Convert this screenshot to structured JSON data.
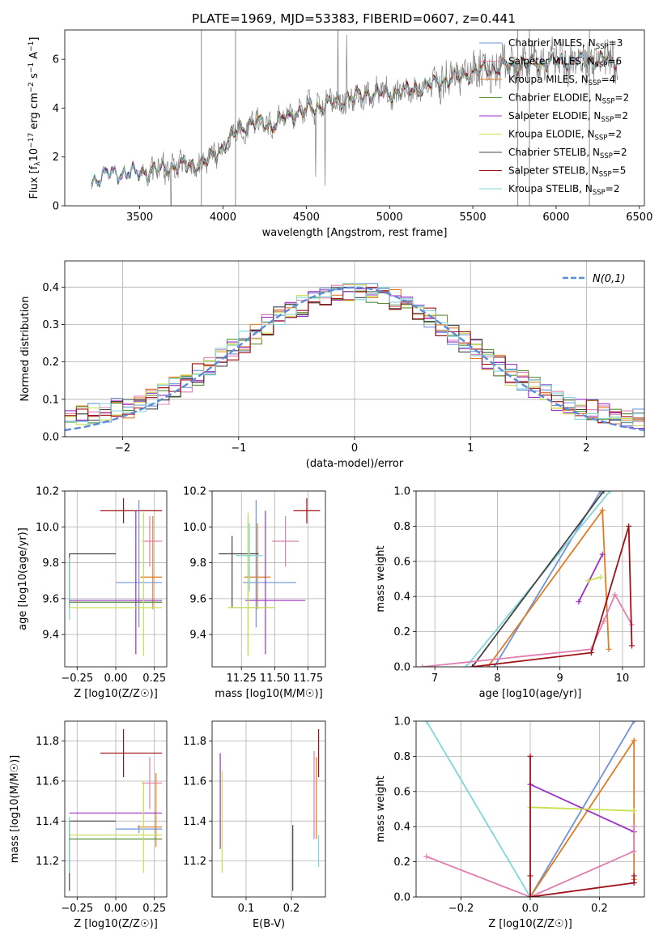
{
  "figure_title": "PLATE=1969, MJD=53383, FIBERID=0607, z=0.441",
  "colors": {
    "Chabrier MILES": "#6f93db",
    "Salpeter MILES": "#e07fb0",
    "Kroupa MILES": "#e07b22",
    "Chabrier ELODIE": "#5a8f3a",
    "Salpeter ELODIE": "#9b30c8",
    "Kroupa ELODIE": "#c8df50",
    "Chabrier STELIB": "#444444",
    "Salpeter STELIB": "#a01018",
    "Kroupa STELIB": "#80d6da",
    "data": "#808080",
    "normal": "#5b8bd9"
  },
  "chart_data": [
    {
      "id": "spectrum",
      "type": "line",
      "xlabel": "wavelength [Angstrom, rest frame]",
      "ylabel": "Flux [f_λ 10^-17 erg cm^-2 s^-1 A^-1]",
      "xlim": [
        3050,
        6530
      ],
      "ylim": [
        0,
        7.2
      ],
      "xticks": [
        3500,
        4000,
        4500,
        5000,
        5500,
        6000,
        6500
      ],
      "yticks": [
        0,
        2,
        4,
        6
      ],
      "legend_position": "top-right",
      "legend": [
        {
          "name": "Chabrier MILES",
          "nssp": "3"
        },
        {
          "name": "Salpeter MILES",
          "nssp": "6"
        },
        {
          "name": "Kroupa MILES",
          "nssp": "4"
        },
        {
          "name": "Chabrier ELODIE",
          "nssp": "2"
        },
        {
          "name": "Salpeter ELODIE",
          "nssp": "2"
        },
        {
          "name": "Kroupa ELODIE",
          "nssp": "2"
        },
        {
          "name": "Chabrier STELIB",
          "nssp": "2"
        },
        {
          "name": "Salpeter STELIB",
          "nssp": "5"
        },
        {
          "name": "Kroupa STELIB",
          "nssp": "2"
        }
      ],
      "data_wavelength_range": [
        3210,
        6370
      ],
      "continuum": [
        [
          3210,
          1.0
        ],
        [
          3300,
          1.3
        ],
        [
          3500,
          1.35
        ],
        [
          3600,
          1.45
        ],
        [
          3700,
          1.6
        ],
        [
          3800,
          1.65
        ],
        [
          3900,
          1.8
        ],
        [
          4000,
          2.4
        ],
        [
          4100,
          3.2
        ],
        [
          4200,
          3.4
        ],
        [
          4300,
          3.3
        ],
        [
          4400,
          3.7
        ],
        [
          4500,
          3.9
        ],
        [
          4600,
          4.1
        ],
        [
          4700,
          4.3
        ],
        [
          4800,
          4.5
        ],
        [
          4900,
          4.6
        ],
        [
          5000,
          4.6
        ],
        [
          5100,
          4.7
        ],
        [
          5200,
          4.85
        ],
        [
          5300,
          5.1
        ],
        [
          5400,
          5.2
        ],
        [
          5500,
          5.5
        ],
        [
          5600,
          5.6
        ],
        [
          5700,
          5.7
        ],
        [
          5800,
          5.8
        ],
        [
          5900,
          5.85
        ],
        [
          6000,
          5.9
        ],
        [
          6100,
          5.95
        ],
        [
          6200,
          5.95
        ],
        [
          6370,
          6.0
        ]
      ]
    },
    {
      "id": "residual-histogram",
      "type": "histogram",
      "xlabel": "(data-model)/error",
      "ylabel": "Normed distribution",
      "xlim": [
        -2.5,
        2.5
      ],
      "ylim": [
        0,
        0.47
      ],
      "xticks": [
        -2,
        -1,
        0,
        1,
        2
      ],
      "yticks": [
        0.0,
        0.1,
        0.2,
        0.3,
        0.4
      ],
      "bin_width": 0.1,
      "legend_position": "top-right",
      "legend_label": "N(0,1)",
      "normal_mu": 0,
      "normal_sigma": 1
    },
    {
      "id": "age-vs-z",
      "type": "errorbar",
      "xlabel": "Z [log10(Z/Z☉)]",
      "ylabel": "age [log10(age/yr)]",
      "xlim": [
        -0.33,
        0.33
      ],
      "ylim": [
        9.22,
        10.2
      ],
      "xticks": [
        -0.25,
        0.0,
        0.25
      ],
      "yticks": [
        9.4,
        9.6,
        9.8,
        10.0,
        10.2
      ],
      "points": [
        {
          "model": "Salpeter STELIB",
          "x": 0.05,
          "xerr": [
            0.15,
            0.25
          ],
          "y": 10.09,
          "yerr": [
            0.07,
            0.07
          ]
        },
        {
          "model": "Salpeter MILES",
          "x": 0.22,
          "xerr": [
            0.05,
            0.08
          ],
          "y": 9.92,
          "yerr": [
            0.14,
            0.14
          ]
        },
        {
          "model": "Kroupa MILES",
          "x": 0.24,
          "xerr": [
            0.08,
            0.06
          ],
          "y": 9.72,
          "yerr": [
            0.18,
            0.34
          ]
        },
        {
          "model": "Chabrier MILES",
          "x": 0.15,
          "xerr": [
            0.15,
            0.15
          ],
          "y": 9.69,
          "yerr": [
            0.25,
            0.46
          ]
        },
        {
          "model": "Chabrier STELIB",
          "x": -0.3,
          "xerr": [
            0.0,
            0.3
          ],
          "y": 9.85,
          "yerr": [
            0.3,
            0.0
          ]
        },
        {
          "model": "Kroupa STELIB",
          "x": -0.3,
          "xerr": [
            0.0,
            0.0
          ],
          "y": 9.7,
          "yerr": [
            0.22,
            0.13
          ]
        },
        {
          "model": "Chabrier ELODIE",
          "x": 0.14,
          "xerr": [
            0.44,
            0.16
          ],
          "y": 9.58,
          "yerr": [
            0.0,
            0.0
          ]
        },
        {
          "model": "Salpeter ELODIE",
          "x": 0.13,
          "xerr": [
            0.43,
            0.17
          ],
          "y": 9.59,
          "yerr": [
            0.3,
            0.5
          ]
        },
        {
          "model": "Kroupa ELODIE",
          "x": 0.18,
          "xerr": [
            0.48,
            0.12
          ],
          "y": 9.55,
          "yerr": [
            0.27,
            0.53
          ]
        }
      ]
    },
    {
      "id": "age-vs-mass",
      "type": "errorbar",
      "xlabel": "mass [log10(M/M☉)]",
      "ylabel": "",
      "xlim": [
        11.03,
        11.88
      ],
      "ylim": [
        9.22,
        10.2
      ],
      "xticks": [
        11.25,
        11.5,
        11.75
      ],
      "yticks": [
        9.4,
        9.6,
        9.8,
        10.0,
        10.2
      ],
      "points": [
        {
          "model": "Salpeter STELIB",
          "x": 11.74,
          "xerr": [
            0.1,
            0.1
          ],
          "y": 10.09,
          "yerr": [
            0.07,
            0.07
          ]
        },
        {
          "model": "Salpeter MILES",
          "x": 11.58,
          "xerr": [
            0.1,
            0.1
          ],
          "y": 9.92,
          "yerr": [
            0.14,
            0.14
          ]
        },
        {
          "model": "Kroupa MILES",
          "x": 11.37,
          "xerr": [
            0.1,
            0.1
          ],
          "y": 9.72,
          "yerr": [
            0.18,
            0.3
          ]
        },
        {
          "model": "Chabrier MILES",
          "x": 11.36,
          "xerr": [
            0.1,
            0.3
          ],
          "y": 9.69,
          "yerr": [
            0.25,
            0.46
          ]
        },
        {
          "model": "Chabrier STELIB",
          "x": 11.18,
          "xerr": [
            0.1,
            0.2
          ],
          "y": 9.85,
          "yerr": [
            0.3,
            0.1
          ]
        },
        {
          "model": "Kroupa STELIB",
          "x": 11.31,
          "xerr": [
            0.1,
            0.1
          ],
          "y": 9.84,
          "yerr": [
            0.2,
            0.18
          ]
        },
        {
          "model": "Chabrier ELODIE",
          "x": 11.3,
          "xerr": [
            0.15,
            0.2
          ],
          "y": 9.55,
          "yerr": [
            0.26,
            0.5
          ]
        },
        {
          "model": "Salpeter ELODIE",
          "x": 11.43,
          "xerr": [
            0.15,
            0.3
          ],
          "y": 9.59,
          "yerr": [
            0.3,
            0.5
          ]
        },
        {
          "model": "Kroupa ELODIE",
          "x": 11.3,
          "xerr": [
            0.15,
            0.2
          ],
          "y": 9.55,
          "yerr": [
            0.27,
            0.53
          ]
        }
      ]
    },
    {
      "id": "weight-vs-age",
      "type": "line",
      "xlabel": "age [log10(age/yr)]",
      "ylabel": "mass weight",
      "xlim": [
        6.7,
        10.35
      ],
      "ylim": [
        0,
        1.0
      ],
      "xticks": [
        7,
        8,
        9,
        10
      ],
      "yticks": [
        0.0,
        0.2,
        0.4,
        0.6,
        0.8,
        1.0
      ],
      "series": [
        {
          "model": "Chabrier MILES",
          "x": [
            7.95,
            9.65
          ],
          "y": [
            0.0,
            1.0
          ]
        },
        {
          "model": "Kroupa STELIB",
          "x": [
            7.5,
            9.8
          ],
          "y": [
            0.0,
            1.0
          ]
        },
        {
          "model": "Chabrier STELIB",
          "x": [
            7.6,
            9.7
          ],
          "y": [
            0.0,
            1.0
          ]
        },
        {
          "model": "Kroupa MILES",
          "x": [
            7.85,
            9.68,
            9.78
          ],
          "y": [
            0.0,
            0.89,
            0.1
          ]
        },
        {
          "model": "Salpeter ELODIE",
          "x": [
            9.3,
            9.68
          ],
          "y": [
            0.37,
            0.64
          ]
        },
        {
          "model": "Kroupa ELODIE",
          "x": [
            9.45,
            9.65
          ],
          "y": [
            0.49,
            0.51
          ]
        },
        {
          "model": "Salpeter MILES",
          "x": [
            6.8,
            9.5,
            9.7,
            9.88,
            10.15
          ],
          "y": [
            0.0,
            0.1,
            0.26,
            0.41,
            0.24
          ]
        },
        {
          "model": "Salpeter STELIB",
          "x": [
            7.6,
            9.5,
            10.1,
            10.15
          ],
          "y": [
            0.0,
            0.08,
            0.8,
            0.12
          ]
        }
      ]
    },
    {
      "id": "mass-vs-z",
      "type": "errorbar",
      "xlabel": "Z [log10(Z/Z☉)]",
      "ylabel": "mass [log10(M/M☉)]",
      "xlim": [
        -0.33,
        0.33
      ],
      "ylim": [
        11.02,
        11.9
      ],
      "xticks": [
        -0.25,
        0.0,
        0.25
      ],
      "yticks": [
        11.2,
        11.4,
        11.6,
        11.8
      ],
      "points": [
        {
          "model": "Salpeter STELIB",
          "x": 0.05,
          "xerr": [
            0.15,
            0.25
          ],
          "y": 11.74,
          "yerr": [
            0.12,
            0.12
          ]
        },
        {
          "model": "Salpeter MILES",
          "x": 0.22,
          "xerr": [
            0.05,
            0.08
          ],
          "y": 11.59,
          "yerr": [
            0.13,
            0.13
          ]
        },
        {
          "model": "Kroupa MILES",
          "x": 0.26,
          "xerr": [
            0.12,
            0.04
          ],
          "y": 11.37,
          "yerr": [
            0.1,
            0.27
          ]
        },
        {
          "model": "Chabrier MILES",
          "x": 0.15,
          "xerr": [
            0.15,
            0.15
          ],
          "y": 11.36,
          "yerr": [
            0.02,
            0.02
          ]
        },
        {
          "model": "Chabrier STELIB",
          "x": -0.3,
          "xerr": [
            0.0,
            0.3
          ],
          "y": 11.4,
          "yerr": [
            0.35,
            0.0
          ]
        },
        {
          "model": "Kroupa STELIB",
          "x": -0.3,
          "xerr": [
            0.0,
            0.0
          ],
          "y": 11.32,
          "yerr": [
            0.18,
            0.1
          ]
        },
        {
          "model": "Chabrier ELODIE",
          "x": 0.14,
          "xerr": [
            0.44,
            0.16
          ],
          "y": 11.31,
          "yerr": [
            0.0,
            0.0
          ]
        },
        {
          "model": "Salpeter ELODIE",
          "x": 0.13,
          "xerr": [
            0.43,
            0.17
          ],
          "y": 11.44,
          "yerr": [
            0.0,
            0.0
          ]
        },
        {
          "model": "Kroupa ELODIE",
          "x": 0.18,
          "xerr": [
            0.48,
            0.12
          ],
          "y": 11.33,
          "yerr": [
            0.19,
            0.27
          ]
        }
      ]
    },
    {
      "id": "mass-vs-ebv",
      "type": "errorbar",
      "xlabel": "E(B-V)",
      "ylabel": "",
      "xlim": [
        0.025,
        0.275
      ],
      "ylim": [
        11.02,
        11.9
      ],
      "xticks": [
        0.1,
        0.2
      ],
      "yticks": [
        11.2,
        11.4,
        11.6,
        11.8
      ],
      "points": [
        {
          "model": "Salpeter STELIB",
          "x": 0.26,
          "xerr": [
            0,
            0
          ],
          "y": 11.74,
          "yerr": [
            0.12,
            0.12
          ]
        },
        {
          "model": "Salpeter MILES",
          "x": 0.25,
          "xerr": [
            0,
            0
          ],
          "y": 11.59,
          "yerr": [
            0.28,
            0.16
          ]
        },
        {
          "model": "Kroupa MILES",
          "x": 0.255,
          "xerr": [
            0,
            0
          ],
          "y": 11.5,
          "yerr": [
            0.19,
            0.22
          ]
        },
        {
          "model": "Kroupa STELIB",
          "x": 0.26,
          "xerr": [
            0,
            0
          ],
          "y": 11.25,
          "yerr": [
            0.08,
            0.08
          ]
        },
        {
          "model": "Chabrier STELIB",
          "x": 0.203,
          "xerr": [
            0,
            0
          ],
          "y": 11.2,
          "yerr": [
            0.15,
            0.18
          ]
        },
        {
          "model": "Salpeter ELODIE",
          "x": 0.043,
          "xerr": [
            0,
            0
          ],
          "y": 11.49,
          "yerr": [
            0.23,
            0.25
          ]
        },
        {
          "model": "Kroupa ELODIE",
          "x": 0.047,
          "xerr": [
            0,
            0
          ],
          "y": 11.39,
          "yerr": [
            0.25,
            0.26
          ]
        }
      ]
    },
    {
      "id": "weight-vs-z",
      "type": "line",
      "xlabel": "Z [log10(Z/Z☉)]",
      "ylabel": "mass weight",
      "xlim": [
        -0.33,
        0.33
      ],
      "ylim": [
        0,
        1.0
      ],
      "xticks": [
        -0.2,
        0.0,
        0.2
      ],
      "yticks": [
        0.0,
        0.2,
        0.4,
        0.6,
        0.8,
        1.0
      ],
      "series": [
        {
          "model": "Kroupa STELIB",
          "x": [
            -0.3,
            0.0
          ],
          "y": [
            1.0,
            0.0
          ]
        },
        {
          "model": "Chabrier MILES",
          "x": [
            0.0,
            0.3
          ],
          "y": [
            0.0,
            1.0
          ]
        },
        {
          "model": "Kroupa MILES",
          "x": [
            0.0,
            0.3,
            0.3
          ],
          "y": [
            0.0,
            0.89,
            0.1
          ]
        },
        {
          "model": "Salpeter ELODIE",
          "x": [
            0.0,
            0.3
          ],
          "y": [
            0.64,
            0.37
          ]
        },
        {
          "model": "Kroupa ELODIE",
          "x": [
            0.0,
            0.3
          ],
          "y": [
            0.51,
            0.49
          ]
        },
        {
          "model": "Salpeter MILES",
          "x": [
            -0.3,
            0.0,
            0.3,
            0.3
          ],
          "y": [
            0.23,
            0.0,
            0.26,
            0.4
          ]
        },
        {
          "model": "Salpeter STELIB",
          "x": [
            0.0,
            0.0,
            0.0,
            0.3,
            0.3
          ],
          "y": [
            0.8,
            0.12,
            0.0,
            0.08,
            0.12
          ]
        }
      ]
    }
  ]
}
